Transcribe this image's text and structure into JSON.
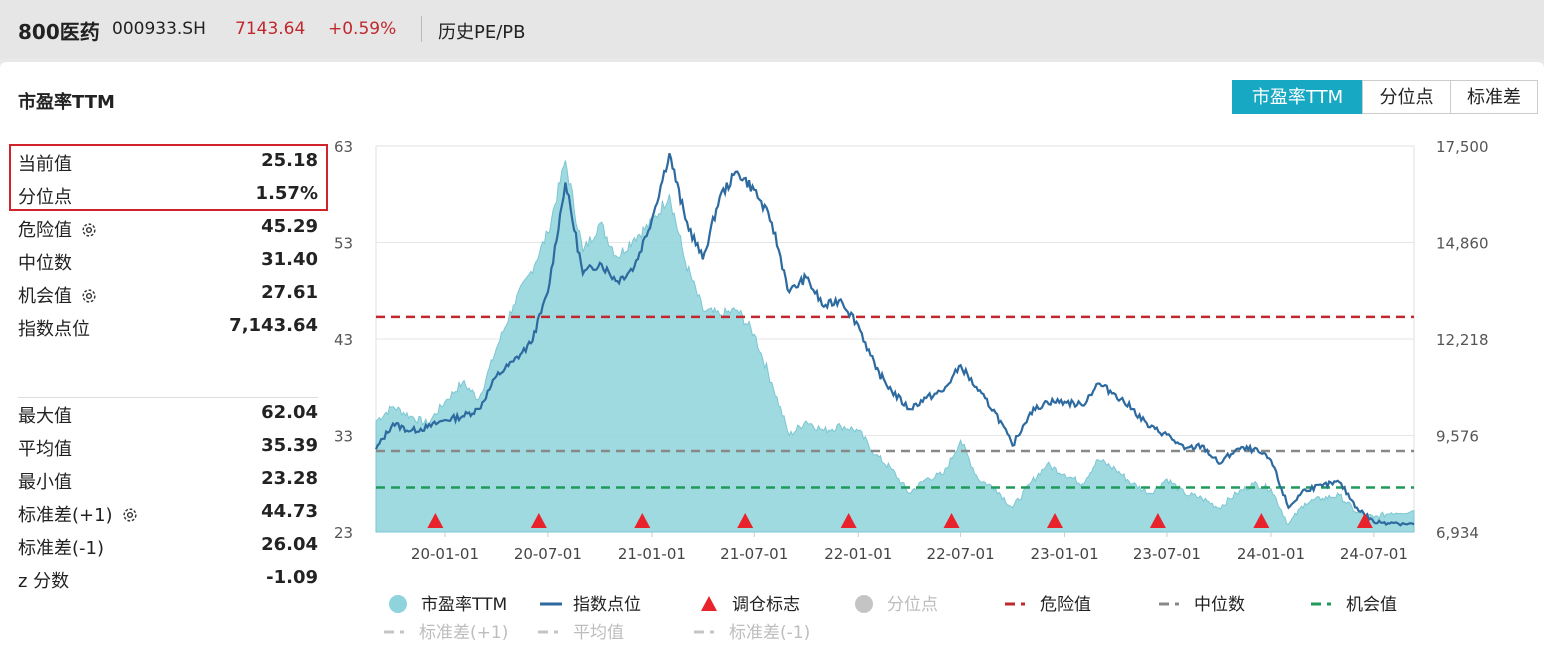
{
  "header": {
    "name": "800医药",
    "code": "000933.SH",
    "price": "7143.64",
    "change": "+0.59%",
    "tab": "历史PE/PB"
  },
  "panel": {
    "title": "市盈率TTM",
    "segments": [
      "市盈率TTM",
      "分位点",
      "标准差"
    ],
    "active_segment": 0,
    "accent_color": "#17a8c3"
  },
  "stats_top": [
    {
      "label": "当前值",
      "value": "25.18",
      "gear": false
    },
    {
      "label": "分位点",
      "value": "1.57%",
      "gear": false
    },
    {
      "label": "危险值",
      "value": "45.29",
      "gear": true
    },
    {
      "label": "中位数",
      "value": "31.40",
      "gear": false
    },
    {
      "label": "机会值",
      "value": "27.61",
      "gear": true
    },
    {
      "label": "指数点位",
      "value": "7,143.64",
      "gear": false
    }
  ],
  "stats_bottom": [
    {
      "label": "最大值",
      "value": "62.04",
      "gear": false
    },
    {
      "label": "平均值",
      "value": "35.39",
      "gear": false
    },
    {
      "label": "最小值",
      "value": "23.28",
      "gear": false
    },
    {
      "label": "标准差(+1)",
      "value": "44.73",
      "gear": true
    },
    {
      "label": "标准差(-1)",
      "value": "26.04",
      "gear": false
    },
    {
      "label": "z 分数",
      "value": "-1.09",
      "gear": false
    }
  ],
  "chart_data": {
    "type": "area",
    "y_left_ticks": [
      "63",
      "53",
      "43",
      "33",
      "23"
    ],
    "y_left_range": [
      23,
      63
    ],
    "y_right_ticks": [
      "17,500",
      "14,860",
      "12,218",
      "9,576",
      "6,934"
    ],
    "y_right_range": [
      6934,
      17500
    ],
    "x_ticks": [
      "20-01-01",
      "20-07-01",
      "21-01-01",
      "21-07-01",
      "22-01-01",
      "22-07-01",
      "23-01-01",
      "23-07-01",
      "24-01-01",
      "24-07-01"
    ],
    "x_start": "2019-09-01",
    "x_end": "2024-09-10",
    "reference_lines": [
      {
        "name": "危险值",
        "value": 45.29,
        "color": "#c0282d"
      },
      {
        "name": "中位数",
        "value": 31.4,
        "color": "#888888"
      },
      {
        "name": "机会值",
        "value": 27.61,
        "color": "#1f9a5a"
      }
    ],
    "pe_series": {
      "name": "市盈率TTM",
      "color": "#8fd3dc",
      "points": [
        [
          "2019-09-01",
          34.5
        ],
        [
          "2019-10-01",
          36.0
        ],
        [
          "2019-11-01",
          35.0
        ],
        [
          "2019-12-01",
          34.2
        ],
        [
          "2020-01-01",
          36.5
        ],
        [
          "2020-02-01",
          38.5
        ],
        [
          "2020-03-01",
          36.8
        ],
        [
          "2020-04-01",
          42.0
        ],
        [
          "2020-05-01",
          46.5
        ],
        [
          "2020-06-01",
          50.0
        ],
        [
          "2020-07-01",
          54.0
        ],
        [
          "2020-08-01",
          61.5
        ],
        [
          "2020-09-01",
          52.0
        ],
        [
          "2020-10-01",
          55.0
        ],
        [
          "2020-11-01",
          51.5
        ],
        [
          "2020-12-01",
          53.5
        ],
        [
          "2021-01-01",
          55.0
        ],
        [
          "2021-02-01",
          58.0
        ],
        [
          "2021-03-01",
          51.0
        ],
        [
          "2021-04-01",
          46.0
        ],
        [
          "2021-05-01",
          45.5
        ],
        [
          "2021-06-01",
          46.0
        ],
        [
          "2021-07-01",
          43.5
        ],
        [
          "2021-08-01",
          38.5
        ],
        [
          "2021-09-01",
          33.0
        ],
        [
          "2021-10-01",
          34.5
        ],
        [
          "2021-11-01",
          33.5
        ],
        [
          "2021-12-01",
          34.0
        ],
        [
          "2022-01-01",
          33.5
        ],
        [
          "2022-02-01",
          31.0
        ],
        [
          "2022-03-01",
          29.5
        ],
        [
          "2022-04-01",
          27.0
        ],
        [
          "2022-05-01",
          28.5
        ],
        [
          "2022-06-01",
          29.0
        ],
        [
          "2022-07-01",
          32.5
        ],
        [
          "2022-08-01",
          28.5
        ],
        [
          "2022-09-01",
          27.5
        ],
        [
          "2022-10-01",
          25.5
        ],
        [
          "2022-11-01",
          28.0
        ],
        [
          "2022-12-01",
          30.0
        ],
        [
          "2023-01-01",
          29.0
        ],
        [
          "2023-02-01",
          28.0
        ],
        [
          "2023-03-01",
          30.5
        ],
        [
          "2023-04-01",
          29.5
        ],
        [
          "2023-05-01",
          28.0
        ],
        [
          "2023-06-01",
          27.0
        ],
        [
          "2023-07-01",
          28.5
        ],
        [
          "2023-08-01",
          27.0
        ],
        [
          "2023-09-01",
          26.5
        ],
        [
          "2023-10-01",
          25.5
        ],
        [
          "2023-11-01",
          27.0
        ],
        [
          "2023-12-01",
          28.0
        ],
        [
          "2024-01-01",
          27.5
        ],
        [
          "2024-02-01",
          23.8
        ],
        [
          "2024-03-01",
          26.0
        ],
        [
          "2024-04-01",
          26.5
        ],
        [
          "2024-05-01",
          26.8
        ],
        [
          "2024-06-01",
          25.0
        ],
        [
          "2024-07-01",
          24.5
        ],
        [
          "2024-08-01",
          25.0
        ],
        [
          "2024-09-10",
          25.2
        ]
      ]
    },
    "index_series": {
      "name": "指数点位",
      "color": "#2d6a9f",
      "points": [
        [
          "2019-09-01",
          9200
        ],
        [
          "2019-10-01",
          9900
        ],
        [
          "2019-11-01",
          9700
        ],
        [
          "2019-12-01",
          9800
        ],
        [
          "2020-01-01",
          10000
        ],
        [
          "2020-02-01",
          10100
        ],
        [
          "2020-03-01",
          10300
        ],
        [
          "2020-04-01",
          11200
        ],
        [
          "2020-05-01",
          11600
        ],
        [
          "2020-06-01",
          12100
        ],
        [
          "2020-07-01",
          13500
        ],
        [
          "2020-08-01",
          16500
        ],
        [
          "2020-09-01",
          14000
        ],
        [
          "2020-10-01",
          14300
        ],
        [
          "2020-11-01",
          13800
        ],
        [
          "2020-12-01",
          14200
        ],
        [
          "2021-01-01",
          15500
        ],
        [
          "2021-02-01",
          17300
        ],
        [
          "2021-03-01",
          15500
        ],
        [
          "2021-04-01",
          14400
        ],
        [
          "2021-05-01",
          16100
        ],
        [
          "2021-06-01",
          16800
        ],
        [
          "2021-07-01",
          16300
        ],
        [
          "2021-08-01",
          15400
        ],
        [
          "2021-09-01",
          13500
        ],
        [
          "2021-10-01",
          13900
        ],
        [
          "2021-11-01",
          13100
        ],
        [
          "2021-12-01",
          13300
        ],
        [
          "2022-01-01",
          12600
        ],
        [
          "2022-02-01",
          11400
        ],
        [
          "2022-03-01",
          10800
        ],
        [
          "2022-04-01",
          10300
        ],
        [
          "2022-05-01",
          10600
        ],
        [
          "2022-06-01",
          10800
        ],
        [
          "2022-07-01",
          11500
        ],
        [
          "2022-08-01",
          10800
        ],
        [
          "2022-09-01",
          10200
        ],
        [
          "2022-10-01",
          9300
        ],
        [
          "2022-11-01",
          10200
        ],
        [
          "2022-12-01",
          10500
        ],
        [
          "2023-01-01",
          10500
        ],
        [
          "2023-02-01",
          10400
        ],
        [
          "2023-03-01",
          11000
        ],
        [
          "2023-04-01",
          10700
        ],
        [
          "2023-05-01",
          10300
        ],
        [
          "2023-06-01",
          9800
        ],
        [
          "2023-07-01",
          9600
        ],
        [
          "2023-08-01",
          9200
        ],
        [
          "2023-09-01",
          9300
        ],
        [
          "2023-10-01",
          8800
        ],
        [
          "2023-11-01",
          9200
        ],
        [
          "2023-12-01",
          9200
        ],
        [
          "2024-01-01",
          8900
        ],
        [
          "2024-02-01",
          7600
        ],
        [
          "2024-03-01",
          8100
        ],
        [
          "2024-04-01",
          8200
        ],
        [
          "2024-05-01",
          8300
        ],
        [
          "2024-06-01",
          7600
        ],
        [
          "2024-07-01",
          7200
        ],
        [
          "2024-08-01",
          7200
        ],
        [
          "2024-09-10",
          7143.64
        ]
      ]
    },
    "rebalance_marks": {
      "name": "调仓标志",
      "color": "#e8232b",
      "dates": [
        "2019-12-15",
        "2020-06-15",
        "2020-12-15",
        "2021-06-15",
        "2021-12-15",
        "2022-06-15",
        "2022-12-15",
        "2023-06-15",
        "2023-12-15",
        "2024-06-15"
      ]
    },
    "legend_row1": [
      {
        "name": "市盈率TTM",
        "kind": "dot",
        "color": "#8fd3dc",
        "muted": false
      },
      {
        "name": "指数点位",
        "kind": "line",
        "color": "#2d6a9f",
        "muted": false
      },
      {
        "name": "调仓标志",
        "kind": "triangle",
        "color": "#e8232b",
        "muted": false
      },
      {
        "name": "分位点",
        "kind": "dot",
        "color": "#cccccc",
        "muted": true
      },
      {
        "name": "危险值",
        "kind": "dash",
        "color": "#c0282d",
        "muted": false
      },
      {
        "name": "中位数",
        "kind": "dash",
        "color": "#888888",
        "muted": false
      },
      {
        "name": "机会值",
        "kind": "dash",
        "color": "#1f9a5a",
        "muted": false
      }
    ],
    "legend_row2": [
      {
        "name": "标准差(+1)",
        "kind": "dash",
        "color": "#cccccc",
        "muted": true
      },
      {
        "name": "平均值",
        "kind": "dash",
        "color": "#cccccc",
        "muted": true
      },
      {
        "name": "标准差(-1)",
        "kind": "dash",
        "color": "#cccccc",
        "muted": true
      }
    ]
  }
}
